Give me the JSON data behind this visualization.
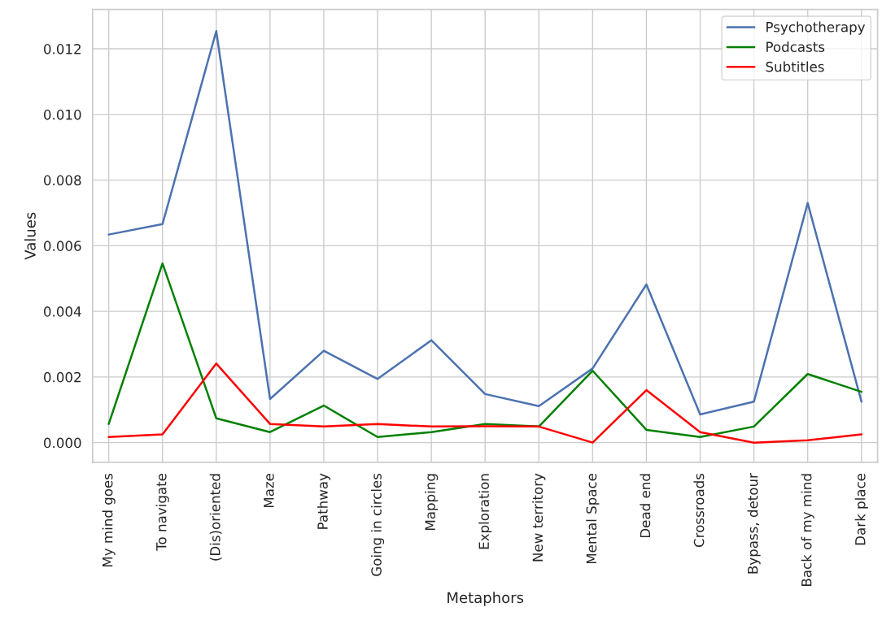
{
  "chart_data": {
    "type": "line",
    "xlabel": "Metaphors",
    "ylabel": "Values",
    "categories": [
      "My mind goes",
      "To navigate",
      "(Dis)oriented",
      "Maze",
      "Pathway",
      "Going in circles",
      "Mapping",
      "Exploration",
      "New territory",
      "Mental Space",
      "Dead end",
      "Crossroads",
      "Bypass, detour",
      "Back of my mind",
      "Dark place"
    ],
    "series": [
      {
        "name": "Psychotherapy",
        "color": "#4c72b0",
        "values": [
          0.00634,
          0.00666,
          0.01254,
          0.00133,
          0.0028,
          0.00194,
          0.00312,
          0.00148,
          0.00111,
          0.00226,
          0.00482,
          0.00086,
          0.00125,
          0.0073,
          0.00125
        ]
      },
      {
        "name": "Podcasts",
        "color": "#008000",
        "values": [
          0.00057,
          0.00546,
          0.00074,
          0.00032,
          0.00113,
          0.00017,
          0.00032,
          0.00057,
          0.00049,
          0.00219,
          0.00039,
          0.00017,
          0.00049,
          0.00209,
          0.00155
        ]
      },
      {
        "name": "Subtitles",
        "color": "#ff0000",
        "values": [
          0.00017,
          0.00025,
          0.00241,
          0.00057,
          0.00049,
          0.00057,
          0.00049,
          0.0005,
          0.00049,
          0.0,
          0.0016,
          0.00032,
          0.0,
          7e-05,
          0.00025
        ]
      }
    ],
    "ylim": [
      -0.0006,
      0.0132
    ],
    "yticks": [
      {
        "value": 0,
        "label": "0.000"
      },
      {
        "value": 0.002,
        "label": "0.002"
      },
      {
        "value": 0.004,
        "label": "0.004"
      },
      {
        "value": 0.006,
        "label": "0.006"
      },
      {
        "value": 0.008,
        "label": "0.008"
      },
      {
        "value": 0.01,
        "label": "0.010"
      },
      {
        "value": 0.012,
        "label": "0.012"
      }
    ],
    "grid": true,
    "legend": "top right"
  }
}
